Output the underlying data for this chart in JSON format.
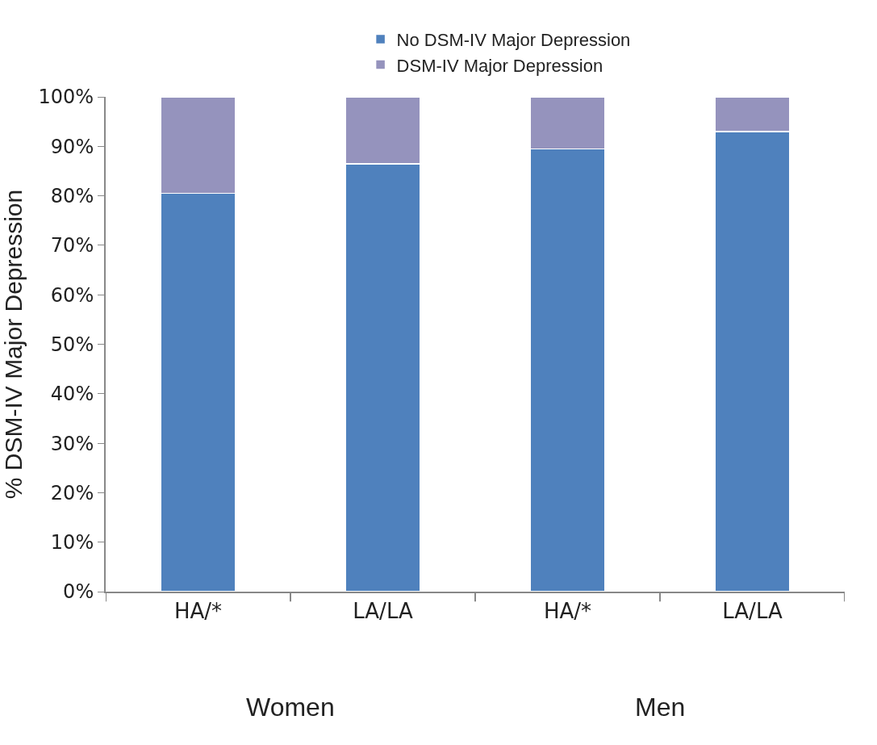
{
  "chart_data": {
    "type": "bar",
    "stacked": true,
    "categories": [
      "HA/*",
      "LA/LA",
      "HA/*",
      "LA/LA"
    ],
    "ylabel": "% DSM-IV Major Depression",
    "series": [
      {
        "name": "No DSM-IV Major Depression",
        "color": "#4f81bd",
        "values": [
          80.5,
          86.5,
          89.5,
          93
        ]
      },
      {
        "name": "DSM-IV Major Depression",
        "color": "#9593bd",
        "values": [
          19.5,
          13.5,
          10.5,
          7
        ]
      }
    ],
    "ylim": [
      0,
      100
    ],
    "yticks": [
      {
        "value": 0,
        "label": "0%"
      },
      {
        "value": 10,
        "label": "10%"
      },
      {
        "value": 20,
        "label": "20%"
      },
      {
        "value": 30,
        "label": "30%"
      },
      {
        "value": 40,
        "label": "40%"
      },
      {
        "value": 50,
        "label": "50%"
      },
      {
        "value": 60,
        "label": "60%"
      },
      {
        "value": 70,
        "label": "70%"
      },
      {
        "value": 80,
        "label": "80%"
      },
      {
        "value": 90,
        "label": "90%"
      },
      {
        "value": 100,
        "label": "100%"
      }
    ],
    "annotations": [
      "Women",
      "Men"
    ],
    "legend": "top"
  }
}
